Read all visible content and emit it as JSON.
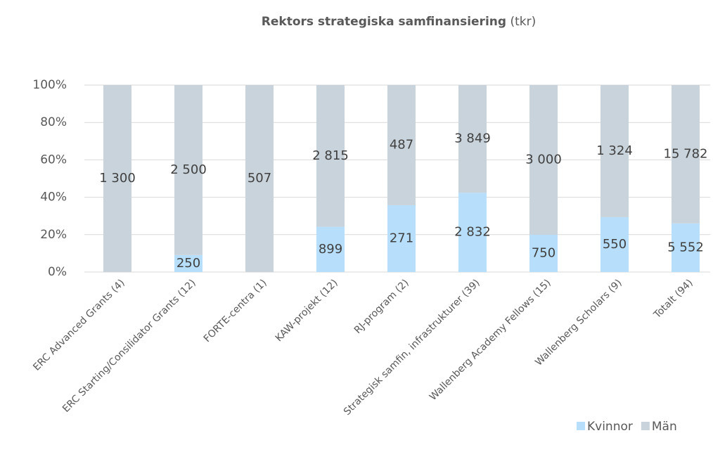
{
  "chart_data": {
    "type": "stacked_percent_bar",
    "title": "Rektors strategiska samfinansiering",
    "title_unit": "(tkr)",
    "categories": [
      "ERC Advanced Grants (4)",
      "ERC Starting/Consilidator Grants (12)",
      "FORTE-centra (1)",
      "KAW-projekt (12)",
      "RJ-program (2)",
      "Strategisk samfin, infrastrukturer (39)",
      "Wallenberg Academy Fellows (15)",
      "Wallenberg Scholars (9)",
      "Totalt (94)"
    ],
    "series": [
      {
        "name": "Kvinnor",
        "color": "#b7defb",
        "values": [
          0,
          250,
          0,
          899,
          271,
          2832,
          750,
          550,
          5552
        ],
        "value_labels": [
          null,
          "250",
          null,
          "899",
          "271",
          "2 832",
          "750",
          "550",
          "5 552"
        ]
      },
      {
        "name": "Män",
        "color": "#c8d3db",
        "values": [
          1300,
          2500,
          507,
          2815,
          487,
          3849,
          3000,
          1324,
          15782
        ],
        "value_labels": [
          "1 300",
          "2 500",
          "507",
          "2 815",
          "487",
          "3 849",
          "3 000",
          "1 324",
          "15 782"
        ]
      }
    ],
    "ylim": [
      0,
      100
    ],
    "yticks": [
      {
        "value": 0,
        "label": "0%"
      },
      {
        "value": 20,
        "label": "20%"
      },
      {
        "value": 40,
        "label": "40%"
      },
      {
        "value": 60,
        "label": "60%"
      },
      {
        "value": 80,
        "label": "80%"
      },
      {
        "value": 100,
        "label": "100%"
      }
    ],
    "grid": true,
    "legend": "bottom-right"
  }
}
